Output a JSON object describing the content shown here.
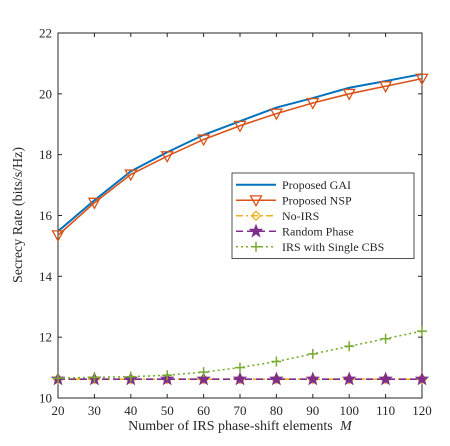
{
  "chart_data": {
    "type": "line",
    "xlabel": "Number of IRS phase-shift elements",
    "xlabel_var": "M",
    "ylabel": "Secrecy Rate (bits/s/Hz)",
    "xlim": [
      20,
      120
    ],
    "ylim": [
      10,
      22
    ],
    "xticks": [
      20,
      30,
      40,
      50,
      60,
      70,
      80,
      90,
      100,
      110,
      120
    ],
    "yticks": [
      10,
      12,
      14,
      16,
      18,
      20,
      22
    ],
    "grid": false,
    "legend_position": "right",
    "x": [
      20,
      30,
      40,
      50,
      60,
      70,
      80,
      90,
      100,
      110,
      120
    ],
    "series": [
      {
        "name": "Proposed GAI",
        "color": "#0072BD",
        "line": "solid",
        "marker": "none",
        "values": [
          15.48,
          16.5,
          17.45,
          18.08,
          18.65,
          19.1,
          19.55,
          19.86,
          20.2,
          20.42,
          20.65
        ]
      },
      {
        "name": "Proposed NSP",
        "color": "#D95319",
        "line": "solid",
        "marker": "triangle-down",
        "values": [
          15.35,
          16.42,
          17.35,
          17.95,
          18.5,
          18.95,
          19.35,
          19.7,
          20.0,
          20.25,
          20.5
        ]
      },
      {
        "name": "No-IRS",
        "color": "#EDB120",
        "line": "dashdot",
        "marker": "diamond",
        "values": [
          10.62,
          10.62,
          10.62,
          10.62,
          10.62,
          10.62,
          10.62,
          10.62,
          10.62,
          10.62,
          10.62
        ]
      },
      {
        "name": "Random Phase",
        "color": "#7E2F8E",
        "line": "dashed",
        "marker": "star",
        "values": [
          10.62,
          10.62,
          10.62,
          10.62,
          10.62,
          10.62,
          10.62,
          10.62,
          10.62,
          10.62,
          10.62
        ]
      },
      {
        "name": "IRS with Single CBS",
        "color": "#77AC30",
        "line": "dotted",
        "marker": "plus",
        "values": [
          10.65,
          10.68,
          10.7,
          10.75,
          10.85,
          11.0,
          11.2,
          11.45,
          11.7,
          11.95,
          12.2
        ]
      }
    ]
  }
}
